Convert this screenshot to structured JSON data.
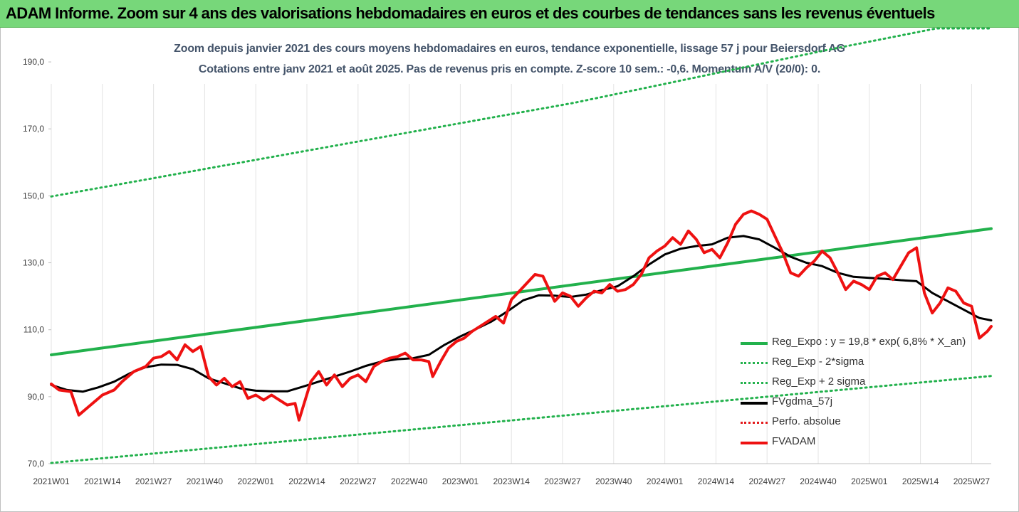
{
  "banner": {
    "title": "ADAM Informe. Zoom sur 4 ans des valorisations hebdomadaires en euros et des courbes de tendances sans les revenus éventuels"
  },
  "chart_data": {
    "type": "line",
    "title": "Zoom depuis janvier 2021 des cours moyens hebdomadaires en euros, tendance exponentielle, lissage 57 j pour Beiersdorf AG",
    "subtitle": "Cotations entre janv 2021 et août 2025. Pas de revenus pris en compte. Z-score 10 sem.: -0,6. Momentum A/V (20/0): 0.",
    "xlabel": "",
    "ylabel": "",
    "ylim": [
      70,
      200
    ],
    "yticks": [
      70,
      90,
      110,
      130,
      150,
      170,
      190
    ],
    "ytick_labels": [
      "70,0",
      "90,0",
      "110,0",
      "130,0",
      "150,0",
      "170,0",
      "190,0"
    ],
    "x_tick_labels": [
      "2021W01",
      "2021W14",
      "2021W27",
      "2021W40",
      "2022W01",
      "2022W14",
      "2022W27",
      "2022W40",
      "2023W01",
      "2023W14",
      "2023W27",
      "2023W40",
      "2024W01",
      "2024W14",
      "2024W27",
      "2024W40",
      "2025W01",
      "2025W14",
      "2025W27"
    ],
    "x_tick_index": [
      0,
      13,
      26,
      39,
      52,
      65,
      78,
      91,
      104,
      117,
      130,
      143,
      156,
      169,
      182,
      195,
      208,
      221,
      234
    ],
    "n_weeks": 240,
    "grid": "vertical",
    "legend_position": "bottom-right",
    "series": [
      {
        "name": "Reg_Expo : y = 19,8 * exp( 6,8% *  X_an)",
        "color": "#22b14c",
        "style": "solid",
        "width": 4,
        "points": [
          [
            0,
            102.5
          ],
          [
            239,
            140.2
          ]
        ]
      },
      {
        "name": "Reg_Exp - 2*sigma",
        "color": "#22b14c",
        "style": "dotted",
        "width": 3,
        "points": [
          [
            0,
            70.2
          ],
          [
            239,
            96.2
          ]
        ]
      },
      {
        "name": "Reg_Exp + 2 sigma",
        "color": "#22b14c",
        "style": "dotted",
        "width": 3,
        "points": [
          [
            0,
            149.8
          ],
          [
            133,
            177.8
          ],
          [
            197,
            193.5
          ],
          [
            225,
            200.0
          ],
          [
            239,
            200.0
          ]
        ]
      },
      {
        "name": "FVgdma_57j",
        "color": "#000000",
        "style": "solid",
        "width": 3,
        "points": [
          [
            0,
            93.5
          ],
          [
            4,
            92.0
          ],
          [
            8,
            91.5
          ],
          [
            12,
            92.8
          ],
          [
            16,
            94.5
          ],
          [
            20,
            97.0
          ],
          [
            24,
            98.8
          ],
          [
            28,
            99.6
          ],
          [
            32,
            99.5
          ],
          [
            36,
            98.2
          ],
          [
            40,
            95.5
          ],
          [
            44,
            94.0
          ],
          [
            48,
            92.5
          ],
          [
            52,
            91.8
          ],
          [
            56,
            91.6
          ],
          [
            60,
            91.6
          ],
          [
            64,
            93.0
          ],
          [
            68,
            94.5
          ],
          [
            72,
            96.0
          ],
          [
            76,
            97.5
          ],
          [
            80,
            99.2
          ],
          [
            84,
            100.5
          ],
          [
            88,
            101.2
          ],
          [
            92,
            101.5
          ],
          [
            96,
            102.5
          ],
          [
            100,
            105.5
          ],
          [
            104,
            108.0
          ],
          [
            108,
            110.2
          ],
          [
            112,
            112.5
          ],
          [
            116,
            115.5
          ],
          [
            120,
            118.8
          ],
          [
            124,
            120.3
          ],
          [
            128,
            120.2
          ],
          [
            132,
            119.8
          ],
          [
            136,
            120.5
          ],
          [
            140,
            121.8
          ],
          [
            144,
            123.0
          ],
          [
            148,
            126.0
          ],
          [
            152,
            129.5
          ],
          [
            156,
            132.5
          ],
          [
            160,
            134.2
          ],
          [
            164,
            135.0
          ],
          [
            168,
            135.5
          ],
          [
            172,
            137.5
          ],
          [
            176,
            138.0
          ],
          [
            180,
            137.0
          ],
          [
            184,
            134.5
          ],
          [
            188,
            131.8
          ],
          [
            192,
            130.0
          ],
          [
            196,
            129.0
          ],
          [
            200,
            127.0
          ],
          [
            204,
            125.8
          ],
          [
            208,
            125.5
          ],
          [
            212,
            125.2
          ],
          [
            216,
            124.8
          ],
          [
            220,
            124.5
          ],
          [
            224,
            121.0
          ],
          [
            228,
            118.5
          ],
          [
            232,
            116.0
          ],
          [
            236,
            113.5
          ],
          [
            239,
            112.8
          ]
        ]
      },
      {
        "name": "Perfo. absolue",
        "color": "#e31a1c",
        "style": "dotted",
        "width": 3,
        "points": []
      },
      {
        "name": "FVADAM",
        "color": "#ee1111",
        "style": "solid",
        "width": 4,
        "points": [
          [
            0,
            93.8
          ],
          [
            2,
            92.0
          ],
          [
            5,
            91.5
          ],
          [
            7,
            84.5
          ],
          [
            10,
            87.5
          ],
          [
            13,
            90.5
          ],
          [
            16,
            92.0
          ],
          [
            18,
            94.5
          ],
          [
            21,
            97.5
          ],
          [
            24,
            99.0
          ],
          [
            26,
            101.5
          ],
          [
            28,
            102.0
          ],
          [
            30,
            103.5
          ],
          [
            32,
            101.0
          ],
          [
            34,
            105.5
          ],
          [
            36,
            103.5
          ],
          [
            38,
            105.0
          ],
          [
            40,
            96.0
          ],
          [
            42,
            93.5
          ],
          [
            44,
            95.5
          ],
          [
            46,
            93.0
          ],
          [
            48,
            94.5
          ],
          [
            50,
            89.5
          ],
          [
            52,
            90.5
          ],
          [
            54,
            89.0
          ],
          [
            56,
            90.5
          ],
          [
            58,
            89.0
          ],
          [
            60,
            87.5
          ],
          [
            62,
            88.0
          ],
          [
            63,
            83.0
          ],
          [
            66,
            94.5
          ],
          [
            68,
            97.5
          ],
          [
            70,
            93.5
          ],
          [
            72,
            96.5
          ],
          [
            74,
            93.0
          ],
          [
            76,
            95.5
          ],
          [
            78,
            96.5
          ],
          [
            80,
            94.5
          ],
          [
            82,
            99.0
          ],
          [
            84,
            100.5
          ],
          [
            86,
            101.5
          ],
          [
            88,
            102.0
          ],
          [
            90,
            103.0
          ],
          [
            92,
            101.0
          ],
          [
            94,
            101.0
          ],
          [
            96,
            100.5
          ],
          [
            97,
            96.0
          ],
          [
            99,
            100.5
          ],
          [
            101,
            104.5
          ],
          [
            103,
            106.5
          ],
          [
            105,
            107.5
          ],
          [
            107,
            109.5
          ],
          [
            109,
            111.0
          ],
          [
            111,
            112.5
          ],
          [
            113,
            114.0
          ],
          [
            115,
            112.0
          ],
          [
            117,
            119.0
          ],
          [
            119,
            121.5
          ],
          [
            121,
            124.0
          ],
          [
            123,
            126.5
          ],
          [
            125,
            126.0
          ],
          [
            127,
            121.0
          ],
          [
            128,
            118.5
          ],
          [
            130,
            121.0
          ],
          [
            132,
            120.0
          ],
          [
            134,
            117.0
          ],
          [
            136,
            119.5
          ],
          [
            138,
            121.5
          ],
          [
            140,
            121.0
          ],
          [
            142,
            123.5
          ],
          [
            144,
            121.5
          ],
          [
            146,
            122.0
          ],
          [
            148,
            123.5
          ],
          [
            150,
            126.5
          ],
          [
            152,
            131.5
          ],
          [
            154,
            133.5
          ],
          [
            156,
            135.0
          ],
          [
            158,
            137.5
          ],
          [
            160,
            135.5
          ],
          [
            162,
            139.5
          ],
          [
            164,
            137.0
          ],
          [
            166,
            133.0
          ],
          [
            168,
            134.0
          ],
          [
            170,
            131.5
          ],
          [
            172,
            136.0
          ],
          [
            174,
            141.5
          ],
          [
            176,
            144.5
          ],
          [
            178,
            145.5
          ],
          [
            180,
            144.5
          ],
          [
            182,
            143.0
          ],
          [
            184,
            138.0
          ],
          [
            186,
            133.0
          ],
          [
            188,
            127.0
          ],
          [
            190,
            126.0
          ],
          [
            192,
            128.5
          ],
          [
            194,
            130.5
          ],
          [
            196,
            133.5
          ],
          [
            198,
            131.5
          ],
          [
            200,
            127.0
          ],
          [
            202,
            122.0
          ],
          [
            204,
            124.5
          ],
          [
            206,
            123.5
          ],
          [
            208,
            122.0
          ],
          [
            210,
            126.0
          ],
          [
            212,
            127.0
          ],
          [
            214,
            125.0
          ],
          [
            216,
            129.0
          ],
          [
            218,
            133.0
          ],
          [
            220,
            134.5
          ],
          [
            222,
            121.0
          ],
          [
            224,
            115.0
          ],
          [
            226,
            118.0
          ],
          [
            228,
            122.5
          ],
          [
            230,
            121.5
          ],
          [
            232,
            118.0
          ],
          [
            234,
            117.0
          ],
          [
            236,
            107.5
          ],
          [
            238,
            109.5
          ],
          [
            239,
            111.0
          ]
        ]
      }
    ]
  }
}
